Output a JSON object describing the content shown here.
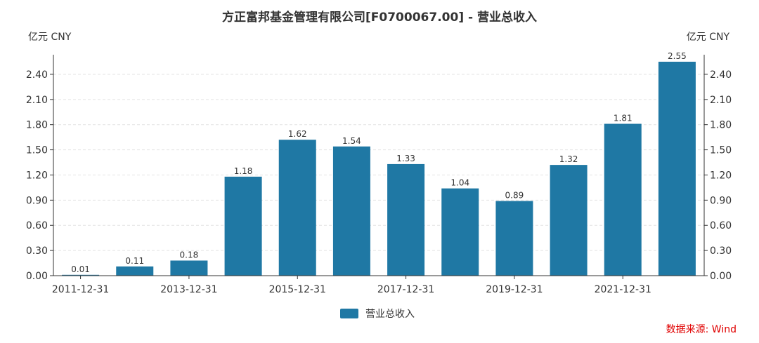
{
  "chart_data": {
    "type": "bar",
    "title": "方正富邦基金管理有限公司[F0700067.00] - 营业总收入",
    "categories": [
      "2011-12-31",
      "2012-12-31",
      "2013-12-31",
      "2014-12-31",
      "2015-12-31",
      "2016-12-31",
      "2017-12-31",
      "2018-12-31",
      "2019-12-31",
      "2020-12-31",
      "2021-12-31",
      "2022-12-31"
    ],
    "x_tick_labels": [
      "2011-12-31",
      "2013-12-31",
      "2015-12-31",
      "2017-12-31",
      "2019-12-31",
      "2021-12-31"
    ],
    "series": [
      {
        "name": "营业总收入",
        "values": [
          0.01,
          0.11,
          0.18,
          1.18,
          1.62,
          1.54,
          1.33,
          1.04,
          0.89,
          1.32,
          1.81,
          2.55
        ],
        "color": "#1f78a4"
      }
    ],
    "y_left_label": "亿元  CNY",
    "y_right_label": "亿元  CNY",
    "y_ticks": [
      "0.00",
      "0.30",
      "0.60",
      "0.90",
      "1.20",
      "1.50",
      "1.80",
      "2.10",
      "2.40"
    ],
    "ylim": [
      0,
      2.55
    ],
    "grid": true,
    "legend_position": "bottom-center"
  },
  "source": "数据来源: Wind"
}
